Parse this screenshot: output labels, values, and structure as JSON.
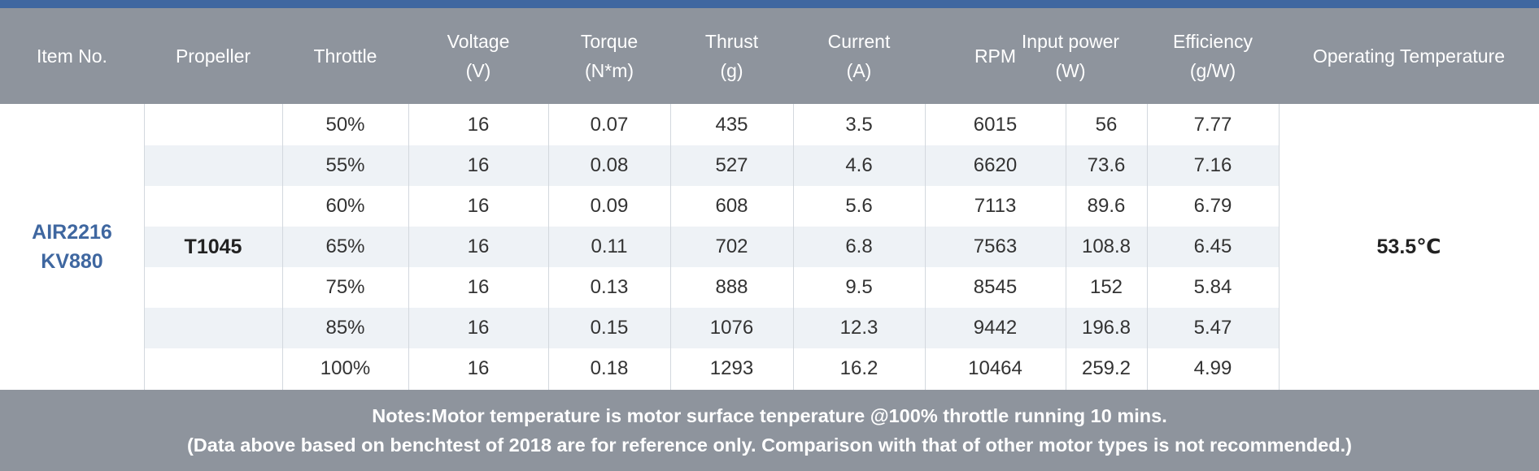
{
  "table": {
    "headers": [
      {
        "lines": [
          "Item No."
        ]
      },
      {
        "lines": [
          "Propeller"
        ]
      },
      {
        "lines": [
          "Throttle"
        ]
      },
      {
        "lines": [
          "Voltage",
          "(V)"
        ]
      },
      {
        "lines": [
          "Torque",
          "(N*m)"
        ]
      },
      {
        "lines": [
          "Thrust",
          "(g)"
        ]
      },
      {
        "lines": [
          "Current",
          "(A)"
        ]
      },
      {
        "lines": [
          "RPM"
        ]
      },
      {
        "lines": [
          "Input power",
          "(W)"
        ]
      },
      {
        "lines": [
          "Efficiency",
          "(g/W)"
        ]
      },
      {
        "lines": [
          "Operating Temperature"
        ]
      }
    ],
    "item_no": [
      "AIR2216",
      "KV880"
    ],
    "propeller": "T1045",
    "operating_temperature": "53.5℃",
    "rows": [
      [
        "50%",
        "16",
        "0.07",
        "435",
        "3.5",
        "6015",
        "56",
        "7.77"
      ],
      [
        "55%",
        "16",
        "0.08",
        "527",
        "4.6",
        "6620",
        "73.6",
        "7.16"
      ],
      [
        "60%",
        "16",
        "0.09",
        "608",
        "5.6",
        "7113",
        "89.6",
        "6.79"
      ],
      [
        "65%",
        "16",
        "0.11",
        "702",
        "6.8",
        "7563",
        "108.8",
        "6.45"
      ],
      [
        "75%",
        "16",
        "0.13",
        "888",
        "9.5",
        "8545",
        "152",
        "5.84"
      ],
      [
        "85%",
        "16",
        "0.15",
        "1076",
        "12.3",
        "9442",
        "196.8",
        "5.47"
      ],
      [
        "100%",
        "16",
        "0.18",
        "1293",
        "16.2",
        "10464",
        "259.2",
        "4.99"
      ]
    ]
  },
  "notes": [
    "Notes:Motor temperature is motor surface tenperature @100% throttle running 10 mins.",
    "(Data above based on benchtest of 2018 are for reference only. Comparison with that of other motor types is not recommended.)"
  ]
}
